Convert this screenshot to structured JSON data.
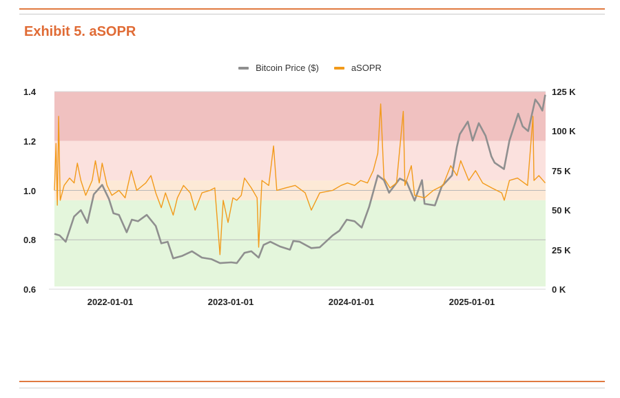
{
  "title": "Exhibit 5. aSOPR",
  "colors": {
    "accent": "#e06b35",
    "price": "#8f8f8f",
    "asopr": "#f29a1a",
    "band_red": "#f0c1c0",
    "band_pink": "#fbe1de",
    "band_peach": "#fde9d6",
    "band_green": "#e4f6dc"
  },
  "chart_data": {
    "type": "line",
    "title": "",
    "legend": {
      "position": "top",
      "entries": [
        "Bitcoin Price ($)",
        "aSOPR"
      ]
    },
    "x_ticks": [
      "2022-01-01",
      "2023-01-01",
      "2024-01-01",
      "2025-01-01"
    ],
    "x_range": [
      "2021-06-15",
      "2025-08-15"
    ],
    "y_left": {
      "range": [
        0.6,
        1.4
      ],
      "ticks": [
        "0.6",
        "0.8",
        "1.0",
        "1.2",
        "1.4"
      ]
    },
    "y_right": {
      "range": [
        0,
        125000
      ],
      "ticks": [
        "0 K",
        "25 K",
        "50 K",
        "75 K",
        "100 K",
        "125 K"
      ]
    },
    "bands": [
      {
        "from": 1.2,
        "to": 1.4,
        "color": "band_red"
      },
      {
        "from": 1.04,
        "to": 1.2,
        "color": "band_pink"
      },
      {
        "from": 0.96,
        "to": 1.04,
        "color": "band_peach"
      },
      {
        "from": 0.6,
        "to": 0.96,
        "color": "band_green"
      }
    ],
    "gridlines": [
      0.8,
      1.0
    ],
    "series": [
      {
        "name": "Bitcoin Price ($)",
        "axis": "right",
        "points": [
          [
            "2021-06-15",
            35000
          ],
          [
            "2021-07-01",
            34000
          ],
          [
            "2021-07-20",
            30000
          ],
          [
            "2021-08-15",
            46000
          ],
          [
            "2021-09-05",
            50000
          ],
          [
            "2021-09-25",
            42000
          ],
          [
            "2021-10-15",
            60000
          ],
          [
            "2021-11-10",
            66000
          ],
          [
            "2021-12-01",
            57000
          ],
          [
            "2021-12-15",
            48000
          ],
          [
            "2022-01-01",
            47000
          ],
          [
            "2022-01-25",
            36000
          ],
          [
            "2022-02-10",
            44000
          ],
          [
            "2022-03-01",
            43000
          ],
          [
            "2022-03-28",
            47000
          ],
          [
            "2022-04-25",
            40000
          ],
          [
            "2022-05-12",
            29000
          ],
          [
            "2022-06-01",
            30000
          ],
          [
            "2022-06-18",
            19500
          ],
          [
            "2022-07-15",
            21000
          ],
          [
            "2022-08-15",
            24000
          ],
          [
            "2022-09-15",
            20000
          ],
          [
            "2022-10-15",
            19000
          ],
          [
            "2022-11-10",
            16500
          ],
          [
            "2022-12-15",
            17000
          ],
          [
            "2023-01-01",
            16500
          ],
          [
            "2023-01-25",
            23000
          ],
          [
            "2023-02-15",
            24000
          ],
          [
            "2023-03-10",
            20000
          ],
          [
            "2023-03-25",
            28000
          ],
          [
            "2023-04-15",
            30000
          ],
          [
            "2023-05-15",
            27000
          ],
          [
            "2023-06-15",
            25000
          ],
          [
            "2023-06-25",
            30500
          ],
          [
            "2023-07-15",
            30000
          ],
          [
            "2023-08-20",
            26000
          ],
          [
            "2023-09-15",
            26500
          ],
          [
            "2023-10-25",
            34000
          ],
          [
            "2023-11-15",
            37000
          ],
          [
            "2023-12-08",
            44000
          ],
          [
            "2024-01-01",
            43000
          ],
          [
            "2024-01-23",
            39000
          ],
          [
            "2024-02-15",
            52000
          ],
          [
            "2024-03-13",
            72000
          ],
          [
            "2024-04-01",
            69000
          ],
          [
            "2024-04-17",
            61000
          ],
          [
            "2024-05-20",
            70000
          ],
          [
            "2024-06-10",
            68000
          ],
          [
            "2024-07-05",
            56000
          ],
          [
            "2024-07-28",
            69000
          ],
          [
            "2024-08-05",
            54000
          ],
          [
            "2024-09-06",
            53000
          ],
          [
            "2024-09-27",
            65000
          ],
          [
            "2024-10-29",
            72000
          ],
          [
            "2024-11-13",
            90000
          ],
          [
            "2024-11-22",
            98000
          ],
          [
            "2024-12-17",
            106000
          ],
          [
            "2025-01-01",
            94000
          ],
          [
            "2025-01-20",
            105000
          ],
          [
            "2025-02-10",
            97000
          ],
          [
            "2025-02-28",
            84000
          ],
          [
            "2025-03-10",
            80000
          ],
          [
            "2025-04-08",
            76000
          ],
          [
            "2025-04-25",
            94000
          ],
          [
            "2025-05-22",
            111000
          ],
          [
            "2025-06-05",
            103000
          ],
          [
            "2025-06-22",
            100000
          ],
          [
            "2025-07-14",
            120000
          ],
          [
            "2025-07-25",
            117000
          ],
          [
            "2025-08-05",
            113000
          ],
          [
            "2025-08-14",
            123000
          ]
        ]
      },
      {
        "name": "aSOPR",
        "axis": "left",
        "points": [
          [
            "2021-06-15",
            1.0
          ],
          [
            "2021-06-20",
            1.19
          ],
          [
            "2021-06-24",
            0.94
          ],
          [
            "2021-06-28",
            1.3
          ],
          [
            "2021-07-03",
            0.96
          ],
          [
            "2021-07-15",
            1.02
          ],
          [
            "2021-08-01",
            1.05
          ],
          [
            "2021-08-15",
            1.03
          ],
          [
            "2021-08-25",
            1.11
          ],
          [
            "2021-09-05",
            1.04
          ],
          [
            "2021-09-20",
            0.98
          ],
          [
            "2021-10-10",
            1.04
          ],
          [
            "2021-10-20",
            1.12
          ],
          [
            "2021-11-01",
            1.03
          ],
          [
            "2021-11-10",
            1.11
          ],
          [
            "2021-11-25",
            1.02
          ],
          [
            "2021-12-10",
            0.98
          ],
          [
            "2022-01-01",
            1.0
          ],
          [
            "2022-01-20",
            0.97
          ],
          [
            "2022-02-08",
            1.08
          ],
          [
            "2022-02-25",
            1.0
          ],
          [
            "2022-03-25",
            1.03
          ],
          [
            "2022-04-10",
            1.06
          ],
          [
            "2022-04-25",
            0.99
          ],
          [
            "2022-05-12",
            0.93
          ],
          [
            "2022-05-25",
            0.99
          ],
          [
            "2022-06-18",
            0.9
          ],
          [
            "2022-07-01",
            0.97
          ],
          [
            "2022-07-20",
            1.02
          ],
          [
            "2022-08-10",
            0.99
          ],
          [
            "2022-08-25",
            0.92
          ],
          [
            "2022-09-15",
            0.99
          ],
          [
            "2022-10-10",
            1.0
          ],
          [
            "2022-10-25",
            1.01
          ],
          [
            "2022-11-10",
            0.74
          ],
          [
            "2022-11-20",
            0.96
          ],
          [
            "2022-12-05",
            0.87
          ],
          [
            "2022-12-20",
            0.97
          ],
          [
            "2023-01-01",
            0.96
          ],
          [
            "2023-01-15",
            0.98
          ],
          [
            "2023-01-25",
            1.05
          ],
          [
            "2023-02-15",
            1.01
          ],
          [
            "2023-03-05",
            0.97
          ],
          [
            "2023-03-10",
            0.77
          ],
          [
            "2023-03-20",
            1.04
          ],
          [
            "2023-04-10",
            1.02
          ],
          [
            "2023-04-25",
            1.18
          ],
          [
            "2023-05-05",
            1.0
          ],
          [
            "2023-06-01",
            1.01
          ],
          [
            "2023-07-01",
            1.02
          ],
          [
            "2023-08-01",
            0.99
          ],
          [
            "2023-08-20",
            0.92
          ],
          [
            "2023-09-15",
            0.99
          ],
          [
            "2023-10-25",
            1.0
          ],
          [
            "2023-11-20",
            1.02
          ],
          [
            "2023-12-10",
            1.03
          ],
          [
            "2024-01-01",
            1.02
          ],
          [
            "2024-01-20",
            1.04
          ],
          [
            "2024-02-10",
            1.03
          ],
          [
            "2024-02-28",
            1.08
          ],
          [
            "2024-03-13",
            1.15
          ],
          [
            "2024-03-22",
            1.35
          ],
          [
            "2024-04-01",
            1.05
          ],
          [
            "2024-04-20",
            1.01
          ],
          [
            "2024-05-10",
            1.03
          ],
          [
            "2024-05-31",
            1.32
          ],
          [
            "2024-06-05",
            1.02
          ],
          [
            "2024-06-25",
            1.1
          ],
          [
            "2024-07-05",
            0.98
          ],
          [
            "2024-08-05",
            0.97
          ],
          [
            "2024-09-01",
            1.0
          ],
          [
            "2024-10-01",
            1.02
          ],
          [
            "2024-10-25",
            1.1
          ],
          [
            "2024-11-13",
            1.06
          ],
          [
            "2024-11-25",
            1.12
          ],
          [
            "2024-12-20",
            1.04
          ],
          [
            "2025-01-10",
            1.08
          ],
          [
            "2025-02-01",
            1.03
          ],
          [
            "2025-03-01",
            1.01
          ],
          [
            "2025-04-01",
            0.99
          ],
          [
            "2025-04-09",
            0.96
          ],
          [
            "2025-04-25",
            1.04
          ],
          [
            "2025-05-20",
            1.05
          ],
          [
            "2025-06-20",
            1.02
          ],
          [
            "2025-07-07",
            1.3
          ],
          [
            "2025-07-10",
            1.04
          ],
          [
            "2025-07-25",
            1.06
          ],
          [
            "2025-08-14",
            1.03
          ]
        ]
      }
    ]
  }
}
